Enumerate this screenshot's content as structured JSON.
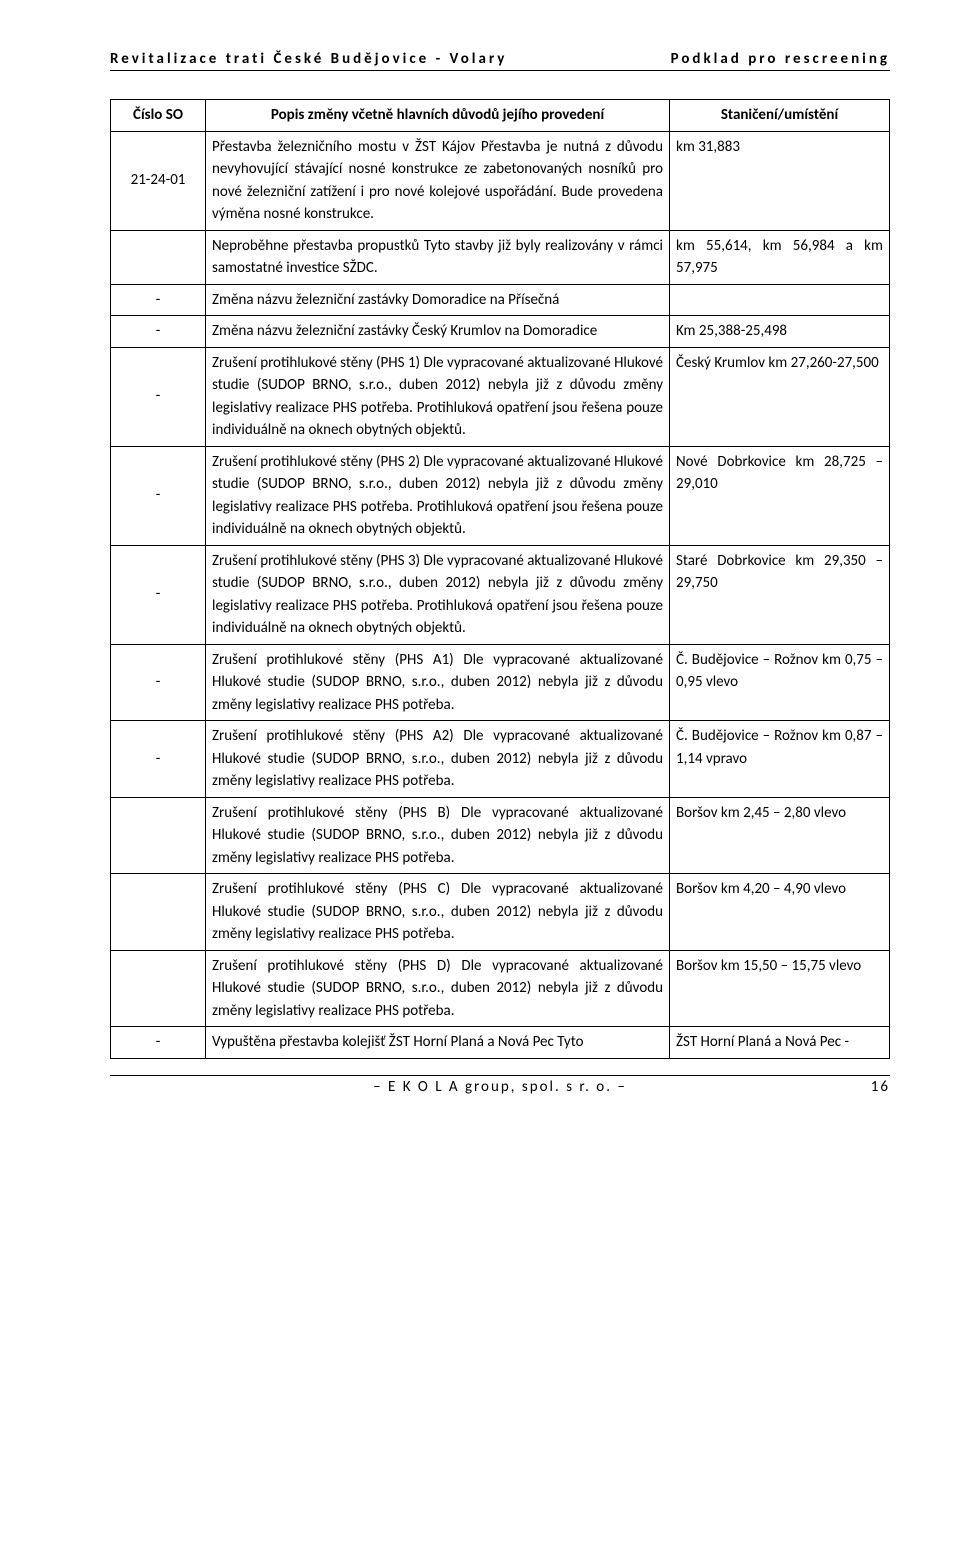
{
  "header": {
    "left": "Revitalizace trati České Budějovice - Volary",
    "right": "Podklad pro rescreening"
  },
  "footer": {
    "center": "– E K O L A group, spol. s r. o. –",
    "page": "16"
  },
  "table": {
    "columns": [
      "Číslo SO",
      "Popis změny včetně hlavních důvodů jejího provedení",
      "Staničení/umístění"
    ],
    "rows": [
      {
        "c1": "21-24-01",
        "c2": "Přestavba železničního mostu v ŽST Kájov\nPřestavba je nutná z důvodu nevyhovující stávající nosné konstrukce ze zabetonovaných nosníků pro nové železniční zatížení i pro nové kolejové uspořádání. Bude provedena výměna nosné konstrukce.",
        "c3": "km 31,883"
      },
      {
        "c1": "",
        "c2": "Neproběhne přestavba propustků\nTyto stavby již byly realizovány v rámci samostatné investice SŽDC.",
        "c3": "km 55,614, km 56,984 a km 57,975"
      },
      {
        "c1": "-",
        "c2": "Změna názvu železniční zastávky Domoradice na Přísečná",
        "c3": ""
      },
      {
        "c1": "-",
        "c2": "Změna názvu železniční zastávky Český Krumlov na Domoradice",
        "c3": "Km 25,388-25,498"
      },
      {
        "c1": "-",
        "c2": "Zrušení protihlukové stěny (PHS 1)\nDle vypracované aktualizované Hlukové studie (SUDOP BRNO, s.r.o., duben 2012) nebyla již z důvodu změny legislativy realizace PHS potřeba. Protihluková opatření jsou řešena pouze individuálně na oknech obytných objektů.",
        "c3": "Český Krumlov km 27,260-27,500"
      },
      {
        "c1": "-",
        "c2": "Zrušení protihlukové stěny (PHS 2)\nDle vypracované aktualizované Hlukové studie (SUDOP BRNO, s.r.o., duben 2012) nebyla již z důvodu změny legislativy realizace PHS potřeba. Protihluková opatření jsou řešena pouze individuálně na oknech obytných objektů.",
        "c3": "Nové Dobrkovice km 28,725 – 29,010"
      },
      {
        "c1": "-",
        "c2": "Zrušení protihlukové stěny (PHS 3)\nDle vypracované aktualizované Hlukové studie (SUDOP BRNO, s.r.o., duben 2012) nebyla již z důvodu změny legislativy realizace PHS potřeba. Protihluková opatření jsou řešena pouze individuálně na oknech obytných objektů.",
        "c3": "Staré Dobrkovice km 29,350 – 29,750"
      },
      {
        "c1": "-",
        "c2": "Zrušení protihlukové stěny (PHS A1)\nDle vypracované aktualizované Hlukové studie (SUDOP BRNO, s.r.o., duben 2012) nebyla již z důvodu změny legislativy realizace PHS potřeba.",
        "c3": "Č. Budějovice – Rožnov km 0,75 – 0,95 vlevo"
      },
      {
        "c1": "-",
        "c2": "Zrušení protihlukové stěny (PHS A2)\nDle vypracované aktualizované Hlukové studie (SUDOP BRNO, s.r.o., duben 2012) nebyla již z důvodu změny legislativy realizace PHS potřeba.",
        "c3": "Č. Budějovice – Rožnov km 0,87 – 1,14 vpravo"
      },
      {
        "c1": "",
        "c2": "Zrušení protihlukové stěny (PHS B)\nDle vypracované aktualizované Hlukové studie (SUDOP BRNO, s.r.o., duben 2012) nebyla již z důvodu změny legislativy realizace PHS potřeba.",
        "c3": "Boršov km 2,45 – 2,80 vlevo"
      },
      {
        "c1": "",
        "c2": "Zrušení protihlukové stěny (PHS C)\nDle vypracované aktualizované Hlukové studie (SUDOP BRNO, s.r.o., duben 2012) nebyla již z důvodu změny legislativy realizace PHS potřeba.",
        "c3": "Boršov km 4,20 – 4,90 vlevo"
      },
      {
        "c1": "",
        "c2": "Zrušení protihlukové stěny (PHS D)\nDle vypracované aktualizované Hlukové studie (SUDOP BRNO, s.r.o., duben 2012) nebyla již z důvodu změny legislativy realizace PHS potřeba.",
        "c3": "Boršov km 15,50 – 15,75 vlevo"
      },
      {
        "c1": "-",
        "c2": "Vypuštěna přestavba kolejišť ŽST Horní Planá a Nová Pec Tyto",
        "c3": "ŽST Horní Planá a Nová Pec -"
      }
    ]
  }
}
